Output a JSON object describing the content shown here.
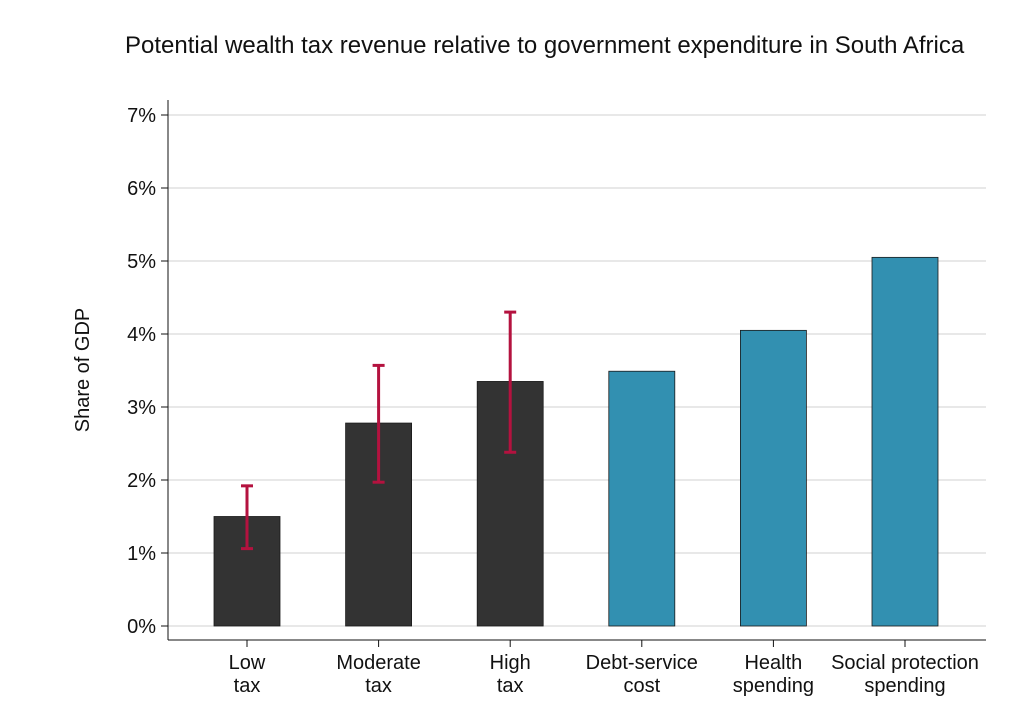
{
  "chart_data": {
    "type": "bar",
    "title": "Potential wealth tax revenue relative to government expenditure in South Africa",
    "xlabel": "",
    "ylabel": "Share of GDP",
    "ylim": [
      0,
      7
    ],
    "y_ticks": [
      "0%",
      "1%",
      "2%",
      "3%",
      "4%",
      "5%",
      "6%",
      "7%"
    ],
    "grid": true,
    "categories": [
      [
        "Low",
        "tax"
      ],
      [
        "Moderate",
        "tax"
      ],
      [
        "High",
        "tax"
      ],
      [
        "Debt-service",
        "cost"
      ],
      [
        "Health",
        "spending"
      ],
      [
        "Social protection",
        "spending"
      ]
    ],
    "values": [
      1.5,
      2.78,
      3.35,
      3.49,
      4.05,
      5.05
    ],
    "error_bars": [
      {
        "low": 1.06,
        "high": 1.92
      },
      {
        "low": 1.97,
        "high": 3.57
      },
      {
        "low": 2.38,
        "high": 4.3
      },
      null,
      null,
      null
    ],
    "bar_colors": [
      "#333333",
      "#333333",
      "#333333",
      "#3290b1",
      "#3290b1",
      "#3290b1"
    ],
    "error_bar_color": "#b4123f"
  }
}
